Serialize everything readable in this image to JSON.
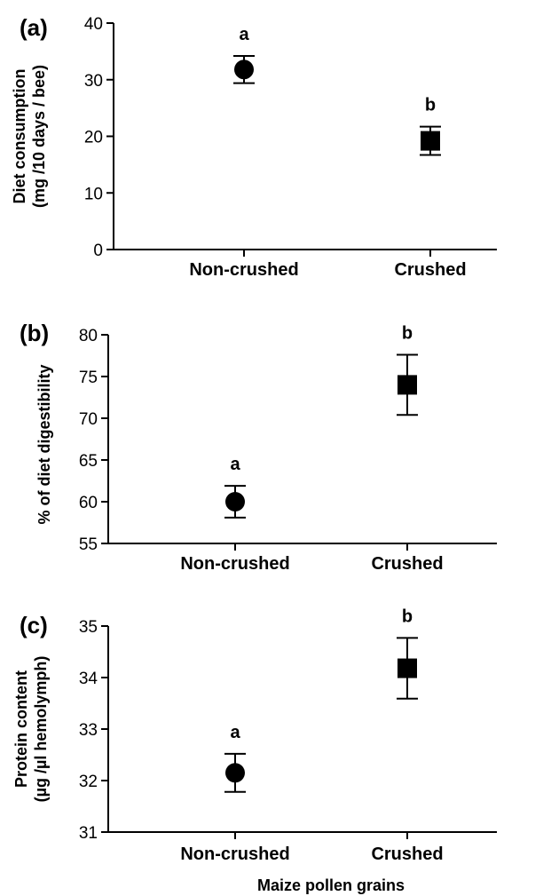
{
  "chart_data": [
    {
      "type": "scatter",
      "panel_label": "(a)",
      "ylabel_line1": "Diet consumption",
      "ylabel_line2": "(mg /10 days / bee)",
      "ylim": [
        0,
        40
      ],
      "yticks": [
        "0",
        "10",
        "20",
        "30",
        "40"
      ],
      "categories": [
        "Non-crushed",
        "Crushed"
      ],
      "values": [
        31.8,
        19.2
      ],
      "errors": [
        2.4,
        2.5
      ],
      "markers": [
        "circle",
        "square"
      ],
      "annotations": [
        "a",
        "b"
      ]
    },
    {
      "type": "scatter",
      "panel_label": "(b)",
      "ylabel_line1": "% of  diet digestibility",
      "ylabel_line2": "",
      "ylim": [
        55,
        80
      ],
      "yticks": [
        "55",
        "60",
        "65",
        "70",
        "75",
        "80"
      ],
      "categories": [
        "Non-crushed",
        "Crushed"
      ],
      "values": [
        60.0,
        74.0
      ],
      "errors": [
        1.9,
        3.6
      ],
      "markers": [
        "circle",
        "square"
      ],
      "annotations": [
        "a",
        "b"
      ]
    },
    {
      "type": "scatter",
      "panel_label": "(c)",
      "ylabel_line1": "Protein content",
      "ylabel_line2": "(µg /µl hemolymph)",
      "ylim": [
        31,
        35
      ],
      "yticks": [
        "31",
        "32",
        "33",
        "34",
        "35"
      ],
      "categories": [
        "Non-crushed",
        "Crushed"
      ],
      "values": [
        32.15,
        34.18
      ],
      "errors": [
        0.37,
        0.59
      ],
      "markers": [
        "circle",
        "square"
      ],
      "annotations": [
        "a",
        "b"
      ],
      "xlabel": "Maize pollen grains"
    }
  ]
}
